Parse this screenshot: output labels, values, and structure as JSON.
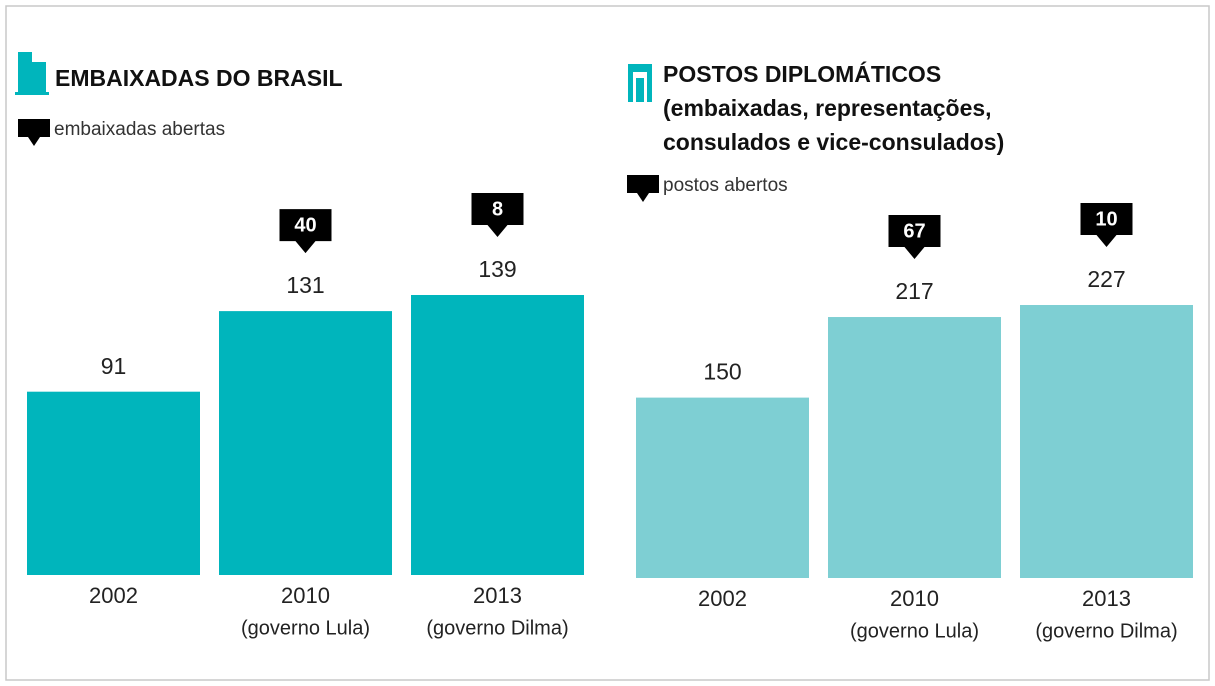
{
  "chart_data": [
    {
      "type": "bar",
      "title": "EMBAIXADAS DO BRASIL",
      "categories": [
        "2002",
        "2010",
        "2013"
      ],
      "category_notes": [
        null,
        "(governo Lula)",
        "(governo Dilma)"
      ],
      "values": [
        91,
        131,
        139
      ],
      "color": "#00b5bc",
      "opened": {
        "name": "embaixadas abertas",
        "values": [
          null,
          40,
          8
        ],
        "color": "#000000"
      }
    },
    {
      "type": "bar",
      "title": "POSTOS DIPLOMÁTICOS",
      "subtitle": [
        "(embaixadas, representações,",
        "consulados e vice-consulados)"
      ],
      "categories": [
        "2002",
        "2010",
        "2013"
      ],
      "category_notes": [
        null,
        "(governo Lula)",
        "(governo Dilma)"
      ],
      "values": [
        150,
        217,
        227
      ],
      "color": "#7ecfd3",
      "opened": {
        "name": "postos abertos",
        "values": [
          null,
          67,
          10
        ],
        "color": "#000000"
      }
    }
  ]
}
